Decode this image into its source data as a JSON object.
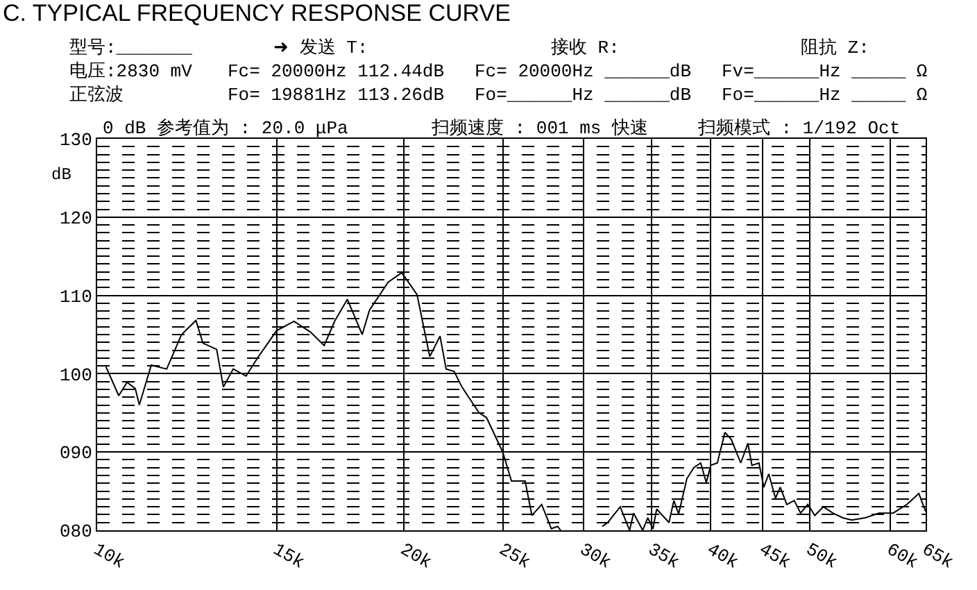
{
  "chart_data": {
    "type": "line",
    "title": "C. TYPICAL FREQUENCY RESPONSE CURVE",
    "ylabel": "dB",
    "annotations": [
      "型号:_______",
      "➜ 发送 T:",
      "接收 R:",
      "阻抗 Z:",
      "电压:2830 mV",
      "Fc= 20000Hz 112.44dB",
      "Fc= 20000Hz ______dB",
      "Fv=______Hz _____ Ω",
      "正弦波",
      "Fo= 19881Hz 113.26dB",
      "Fo=______Hz ______dB",
      "Fo=______Hz _____ Ω",
      "0 dB 参考值为 : 20.0 μPa",
      "扫频速度 : 001 ms 快速",
      "扫频模式 : 1/192 Oct"
    ],
    "x": [
      10200,
      10500,
      10700,
      10900,
      11000,
      11300,
      11700,
      12100,
      12500,
      12700,
      13100,
      13300,
      13600,
      14000,
      14400,
      15000,
      15600,
      16200,
      16700,
      17100,
      17600,
      18200,
      18500,
      19300,
      19900,
      20200,
      20600,
      21200,
      21700,
      22000,
      22400,
      22800,
      23700,
      24100,
      25000,
      25500,
      26300,
      26700,
      27300,
      27900,
      28300,
      28500,
      30000,
      31300,
      31700,
      32600,
      33300,
      33600,
      34300,
      34700,
      35100,
      35400,
      36400,
      36800,
      37200,
      37900,
      38500,
      39100,
      39600,
      40000,
      40600,
      41300,
      41900,
      42800,
      43500,
      43900,
      44600,
      45100,
      45600,
      46300,
      46800,
      47500,
      48300,
      49000,
      49800,
      50600,
      51600,
      52700,
      53900,
      55000,
      56700,
      58500,
      60400,
      62300,
      64000,
      65000
    ],
    "series": [
      {
        "color": "#000000",
        "values": [
          100.9,
          97.2,
          98.9,
          98.1,
          96.0,
          101.1,
          100.6,
          105.0,
          106.8,
          103.9,
          103.1,
          98.3,
          100.6,
          99.7,
          102.2,
          105.5,
          106.7,
          105.3,
          103.6,
          106.7,
          109.5,
          105.0,
          108.1,
          111.7,
          112.9,
          111.7,
          110.1,
          102.2,
          104.8,
          100.6,
          100.3,
          98.3,
          95.0,
          94.4,
          90.0,
          86.3,
          86.3,
          81.9,
          83.3,
          80.2,
          80.5,
          80.0,
          null,
          80.5,
          81.0,
          83.0,
          80.0,
          82.2,
          80.0,
          81.6,
          80.2,
          82.7,
          81.0,
          83.8,
          82.1,
          86.6,
          88.0,
          88.6,
          86.1,
          88.3,
          88.6,
          92.5,
          91.6,
          88.6,
          91.1,
          88.3,
          88.6,
          85.5,
          87.2,
          84.1,
          85.5,
          83.3,
          83.8,
          82.2,
          83.3,
          81.9,
          83.0,
          82.2,
          81.6,
          81.3,
          81.6,
          82.2,
          82.2,
          83.3,
          84.7,
          82.4
        ]
      }
    ],
    "log": "x",
    "xlim": [
      10000,
      65000
    ],
    "ylim": [
      80,
      130
    ],
    "xticks": [
      {
        "value": 10000,
        "label": "10k"
      },
      {
        "value": 15000,
        "label": "15k"
      },
      {
        "value": 20000,
        "label": "20k"
      },
      {
        "value": 25000,
        "label": "25k"
      },
      {
        "value": 30000,
        "label": "30k"
      },
      {
        "value": 35000,
        "label": "35k"
      },
      {
        "value": 40000,
        "label": "40k"
      },
      {
        "value": 45000,
        "label": "45k"
      },
      {
        "value": 50000,
        "label": "50k"
      },
      {
        "value": 60000,
        "label": "60k"
      },
      {
        "value": 65000,
        "label": "65k"
      }
    ],
    "yticks": [
      {
        "value": 80,
        "label": "080"
      },
      {
        "value": 90,
        "label": "090"
      },
      100,
      110,
      120,
      130
    ],
    "grid": true,
    "legend": false,
    "marker": "none",
    "line_style": "solid"
  }
}
